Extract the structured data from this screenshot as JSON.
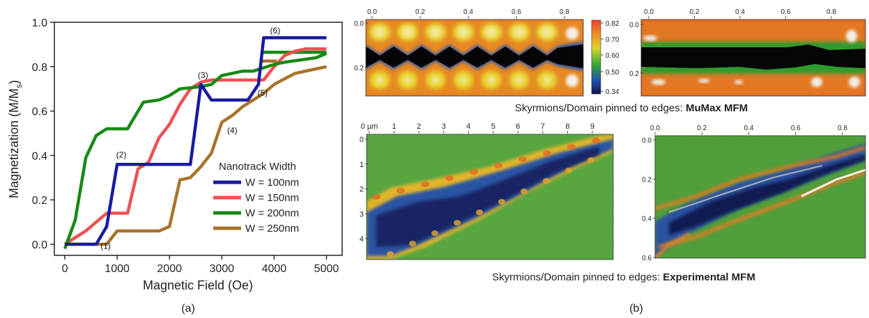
{
  "panel_labels": {
    "a": "(a)",
    "b": "(b)"
  },
  "chart_data": [
    {
      "type": "line",
      "xlabel": "Magnetic Field (Oe)",
      "ylabel_main": "Magnetization (M/M",
      "ylabel_sub": "s",
      "ylabel_tail": ")",
      "xlim": [
        -200,
        5300
      ],
      "ylim": [
        -0.05,
        1.0
      ],
      "xticks": [
        0,
        1000,
        2000,
        3000,
        4000,
        5000
      ],
      "xtick_labels": [
        "0",
        "1000",
        "2000",
        "3000",
        "4000",
        "5000"
      ],
      "yticks": [
        0.0,
        0.2,
        0.4,
        0.6,
        0.8,
        1.0
      ],
      "ytick_labels": [
        "0.0",
        "0.2",
        "0.4",
        "0.6",
        "0.8",
        "1.0"
      ],
      "grid": false,
      "legend": {
        "title": "Nanotrack Width",
        "position": "center-right"
      },
      "series": [
        {
          "name": "W = 100nm",
          "color": "#1a1aa0",
          "x": [
            0,
            600,
            800,
            1000,
            2400,
            2600,
            2800,
            3500,
            3700,
            3800,
            3900,
            5000
          ],
          "y": [
            0.0,
            0.0,
            0.08,
            0.36,
            0.36,
            0.72,
            0.65,
            0.65,
            0.72,
            0.93,
            0.93,
            0.93
          ]
        },
        {
          "name": "W = 150nm",
          "color": "#f05050",
          "x": [
            0,
            400,
            800,
            1200,
            1400,
            1600,
            1800,
            2000,
            2200,
            2400,
            2600,
            2800,
            3000,
            3500,
            3800,
            4000,
            4200,
            4400,
            4600,
            4800,
            5000
          ],
          "y": [
            0.0,
            0.06,
            0.14,
            0.14,
            0.34,
            0.37,
            0.48,
            0.54,
            0.63,
            0.7,
            0.73,
            0.74,
            0.74,
            0.74,
            0.74,
            0.8,
            0.85,
            0.87,
            0.88,
            0.88,
            0.88
          ]
        },
        {
          "name": "W = 200nm",
          "color": "#158a15",
          "x": [
            0,
            200,
            400,
            600,
            800,
            1200,
            1500,
            1800,
            2000,
            2200,
            2600,
            2800,
            3000,
            3400,
            3600,
            4000,
            4200,
            4500,
            4800,
            5000
          ],
          "y": [
            -0.02,
            0.11,
            0.39,
            0.49,
            0.52,
            0.52,
            0.64,
            0.65,
            0.67,
            0.7,
            0.71,
            0.72,
            0.76,
            0.78,
            0.78,
            0.81,
            0.82,
            0.83,
            0.84,
            0.86
          ]
        },
        {
          "name": "W = 250nm",
          "color": "#a8742a",
          "x": [
            0,
            800,
            1000,
            1800,
            2000,
            2200,
            2400,
            2600,
            2800,
            3000,
            3200,
            3400,
            3600,
            3800,
            4000,
            4400,
            4800,
            5000
          ],
          "y": [
            0.0,
            0.0,
            0.06,
            0.06,
            0.08,
            0.29,
            0.3,
            0.35,
            0.41,
            0.55,
            0.58,
            0.62,
            0.65,
            0.68,
            0.72,
            0.77,
            0.79,
            0.8
          ]
        }
      ],
      "extra_segments": [
        {
          "color": "#158a15",
          "x": [
            3750,
            5000
          ],
          "y": [
            0.865,
            0.865
          ]
        },
        {
          "color": "#a8742a",
          "x": [
            3750,
            4050
          ],
          "y": [
            0.825,
            0.825
          ]
        }
      ],
      "annotations": [
        {
          "text": "(1)",
          "x": 780,
          "y": -0.02
        },
        {
          "text": "(2)",
          "x": 1080,
          "y": 0.39
        },
        {
          "text": "(3)",
          "x": 2640,
          "y": 0.75
        },
        {
          "text": "(4)",
          "x": 3200,
          "y": 0.5
        },
        {
          "text": "(5)",
          "x": 3780,
          "y": 0.67
        },
        {
          "text": "(6)",
          "x": 4020,
          "y": 0.95
        }
      ]
    },
    {
      "type": "heatmap",
      "name": "simulated-mfm-skyrmion-track",
      "xticks": [
        "0.0",
        "0.2",
        "0.4",
        "0.6",
        "0.8"
      ],
      "yticks": [
        "0.0",
        "0.2"
      ],
      "colorbar_ticks": [
        "0.82",
        "0.70",
        "0.60",
        "0.50",
        "0.34"
      ]
    },
    {
      "type": "heatmap",
      "name": "simulated-mfm-domain-track",
      "xticks": [
        "0.0",
        "0.2",
        "0.4",
        "0.6",
        "0.8"
      ],
      "yticks": [
        "0.0",
        "0.2"
      ]
    },
    {
      "type": "heatmap",
      "name": "experimental-mfm-um",
      "xticks": [
        "0 µm",
        "1",
        "2",
        "3",
        "4",
        "5",
        "6",
        "7",
        "8",
        "9"
      ],
      "yticks": [
        "0",
        "1",
        "2",
        "3",
        "4"
      ]
    },
    {
      "type": "heatmap",
      "name": "experimental-mfm-normalized",
      "xticks": [
        "0.0",
        "0.2",
        "0.4",
        "0.6",
        "0.8"
      ],
      "yticks": [
        "0.0",
        "0.2",
        "0.4",
        "0.6"
      ]
    }
  ],
  "captions": {
    "mumax_prefix": "Skyrmions/Domain pinned to edges: ",
    "mumax_bold": "MuMax MFM",
    "exp_prefix": "Skyrmions/Domain pinned to edges: ",
    "exp_bold": "Experimental MFM"
  }
}
